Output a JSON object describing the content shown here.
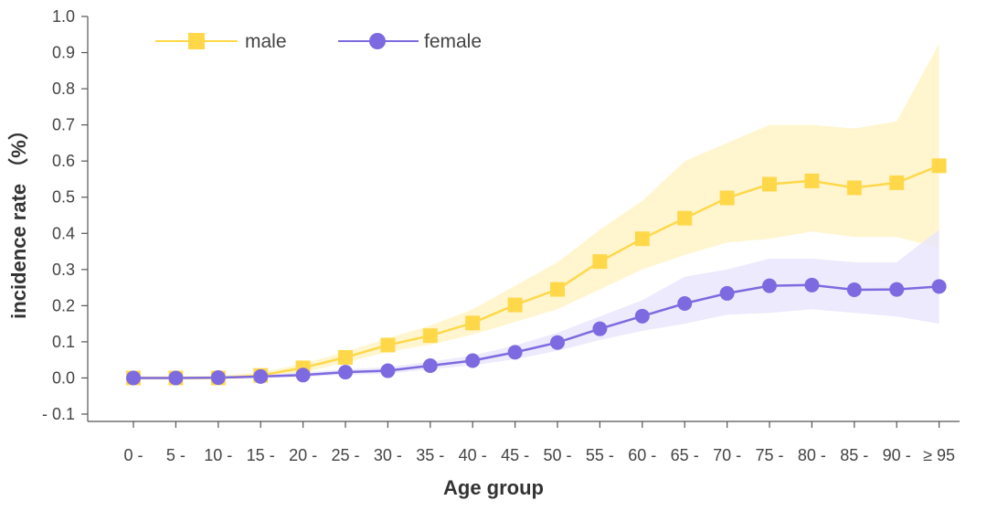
{
  "chart_data": {
    "type": "line",
    "xlabel": "Age group",
    "ylabel": "incidence rate （%）",
    "ylim": [
      -0.1,
      1.0
    ],
    "y_ticks": [
      -0.1,
      0.0,
      0.1,
      0.2,
      0.3,
      0.4,
      0.5,
      0.6,
      0.7,
      0.8,
      0.9,
      1.0
    ],
    "y_tick_labels": [
      "- 0.1",
      "0.0",
      "0.1",
      "0.2",
      "0.3",
      "0.4",
      "0.5",
      "0.6",
      "0.7",
      "0.8",
      "0.9",
      "1.0"
    ],
    "categories": [
      "0 -",
      "5 -",
      "10 -",
      "15 -",
      "20 -",
      "25 -",
      "30 -",
      "35 -",
      "40 -",
      "45 -",
      "50 -",
      "55 -",
      "60 -",
      "65 -",
      "70 -",
      "75 -",
      "80 -",
      "85 -",
      "90 -",
      "≥ 95"
    ],
    "grid": false,
    "legend_position": "top-left",
    "series": [
      {
        "name": "male",
        "color": "#FFD84A",
        "band_color": "#FFF4C8",
        "marker": "square",
        "values": [
          0.0,
          0.0,
          0.0,
          0.007,
          0.028,
          0.057,
          0.091,
          0.117,
          0.152,
          0.202,
          0.245,
          0.322,
          0.385,
          0.442,
          0.498,
          0.536,
          0.545,
          0.526,
          0.54,
          0.587
        ],
        "upper": [
          0.005,
          0.005,
          0.007,
          0.015,
          0.04,
          0.072,
          0.11,
          0.145,
          0.19,
          0.255,
          0.32,
          0.41,
          0.49,
          0.6,
          0.65,
          0.7,
          0.7,
          0.69,
          0.71,
          0.925
        ],
        "lower": [
          -0.005,
          -0.005,
          -0.005,
          0.0,
          0.015,
          0.042,
          0.072,
          0.092,
          0.12,
          0.155,
          0.19,
          0.245,
          0.3,
          0.34,
          0.375,
          0.385,
          0.405,
          0.39,
          0.39,
          0.36
        ]
      },
      {
        "name": "female",
        "color": "#7E6AE0",
        "band_color": "#E9E6FB",
        "marker": "circle",
        "values": [
          0.0,
          0.0,
          0.001,
          0.004,
          0.008,
          0.016,
          0.02,
          0.034,
          0.048,
          0.071,
          0.098,
          0.136,
          0.171,
          0.206,
          0.234,
          0.255,
          0.257,
          0.244,
          0.245,
          0.253
        ],
        "upper": [
          0.003,
          0.003,
          0.004,
          0.008,
          0.015,
          0.024,
          0.03,
          0.045,
          0.062,
          0.09,
          0.125,
          0.17,
          0.215,
          0.28,
          0.3,
          0.33,
          0.33,
          0.32,
          0.32,
          0.41
        ],
        "lower": [
          -0.003,
          -0.003,
          -0.002,
          0.0,
          0.003,
          0.009,
          0.012,
          0.024,
          0.035,
          0.052,
          0.075,
          0.105,
          0.13,
          0.15,
          0.175,
          0.18,
          0.19,
          0.18,
          0.17,
          0.15
        ]
      }
    ]
  }
}
